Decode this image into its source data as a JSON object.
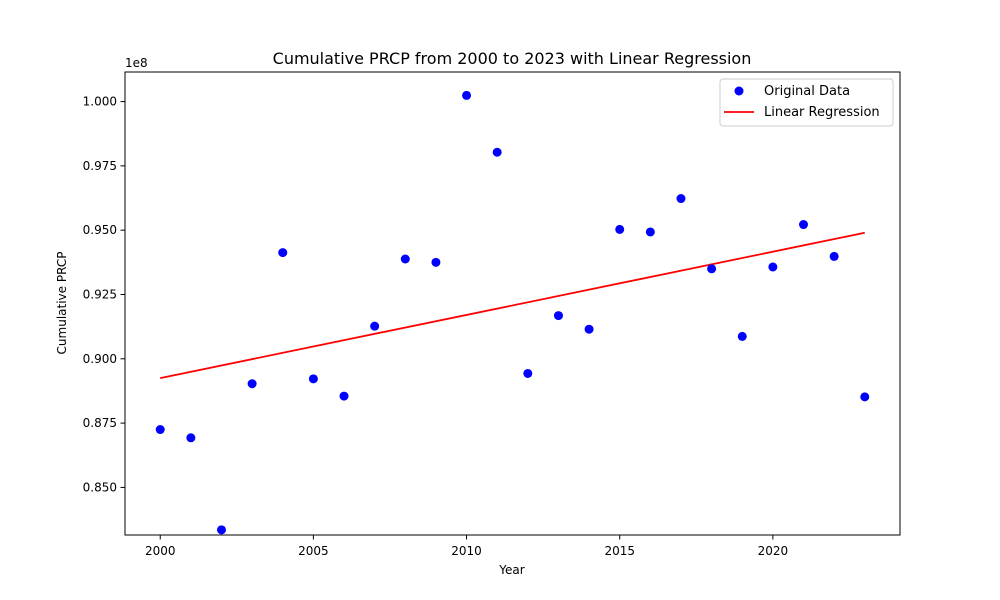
{
  "chart_data": {
    "type": "scatter",
    "title": "Cumulative PRCP from 2000 to 2023 with Linear Regression",
    "xlabel": "Year",
    "ylabel": "Cumulative PRCP",
    "y_offset_label": "1e8",
    "xlim": [
      1998.85,
      2024.15
    ],
    "ylim": [
      0.8315,
      1.0115
    ],
    "x_ticks": [
      2000,
      2005,
      2010,
      2015,
      2020
    ],
    "y_ticks": [
      0.85,
      0.875,
      0.9,
      0.925,
      0.95,
      0.975,
      1.0
    ],
    "y_tick_labels": [
      "0.850",
      "0.875",
      "0.900",
      "0.925",
      "0.950",
      "0.975",
      "1.000"
    ],
    "grid": false,
    "legend_position": "top-right",
    "series": [
      {
        "name": "Original Data",
        "type": "scatter",
        "color": "#0000ff",
        "x": [
          2000,
          2001,
          2002,
          2003,
          2004,
          2005,
          2006,
          2007,
          2008,
          2009,
          2010,
          2011,
          2012,
          2013,
          2014,
          2015,
          2016,
          2017,
          2018,
          2019,
          2020,
          2021,
          2022,
          2023
        ],
        "y": [
          0.8725,
          0.8693,
          0.8335,
          0.8903,
          0.9413,
          0.8922,
          0.8855,
          0.9127,
          0.9388,
          0.9375,
          1.0024,
          0.9803,
          0.8943,
          0.9168,
          0.9115,
          0.9503,
          0.9493,
          0.9623,
          0.935,
          0.9087,
          0.9357,
          0.9522,
          0.9398,
          0.8852
        ]
      },
      {
        "name": "Linear Regression",
        "type": "line",
        "color": "#ff0000",
        "x": [
          2000,
          2023
        ],
        "y": [
          0.8925,
          0.949
        ]
      }
    ]
  }
}
